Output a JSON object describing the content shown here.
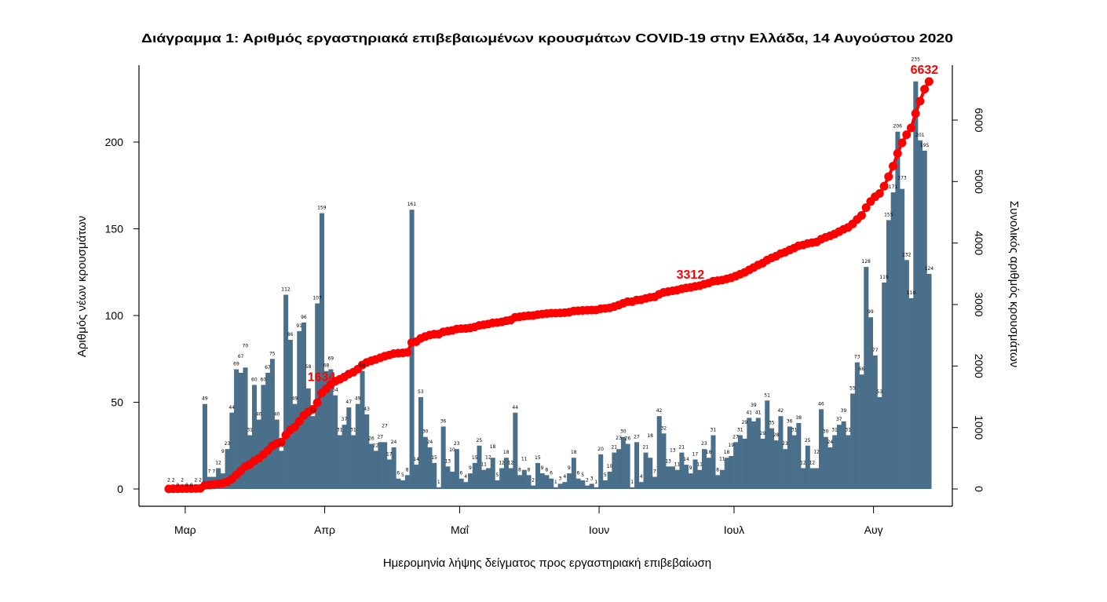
{
  "chart_data": {
    "type": "bar+line",
    "title": "Διάγραμμα 1: Αριθμός εργαστηριακά επιβεβαιωμένων κρουσμάτων COVID-19 στην Ελλάδα, 14 Αυγούστου 2020",
    "xlabel": "Ημερομηνία λήψης δείγματος προς εργαστηριακή επιβεβαίωση",
    "ylabel": "Αριθμός νέων κρουσμάτων",
    "y2label": "Συνολικός αριθμός κρουσμάτων",
    "ylim": [
      0,
      230
    ],
    "y2lim": [
      0,
      6632
    ],
    "yticks": [
      0,
      50,
      100,
      150,
      200
    ],
    "y2ticks": [
      0,
      1000,
      2000,
      3000,
      4000,
      5000,
      6000
    ],
    "xticks": [
      {
        "date": "2020-03-01",
        "label": "Μαρ"
      },
      {
        "date": "2020-04-01",
        "label": "Απρ"
      },
      {
        "date": "2020-05-01",
        "label": "Μαΐ"
      },
      {
        "date": "2020-06-01",
        "label": "Ιουν"
      },
      {
        "date": "2020-07-01",
        "label": "Ιουλ"
      },
      {
        "date": "2020-08-01",
        "label": "Αυγ"
      }
    ],
    "grid": false,
    "colors": {
      "bars": "#4a6f8b",
      "cumulative": "#ff0000"
    },
    "x": [
      "2020-02-26",
      "2020-02-27",
      "2020-02-28",
      "2020-02-29",
      "2020-03-01",
      "2020-03-02",
      "2020-03-03",
      "2020-03-04",
      "2020-03-05",
      "2020-03-06",
      "2020-03-07",
      "2020-03-08",
      "2020-03-09",
      "2020-03-10",
      "2020-03-11",
      "2020-03-12",
      "2020-03-13",
      "2020-03-14",
      "2020-03-15",
      "2020-03-16",
      "2020-03-17",
      "2020-03-18",
      "2020-03-19",
      "2020-03-20",
      "2020-03-21",
      "2020-03-22",
      "2020-03-23",
      "2020-03-24",
      "2020-03-25",
      "2020-03-26",
      "2020-03-27",
      "2020-03-28",
      "2020-03-29",
      "2020-03-30",
      "2020-03-31",
      "2020-04-01",
      "2020-04-02",
      "2020-04-03",
      "2020-04-04",
      "2020-04-05",
      "2020-04-06",
      "2020-04-07",
      "2020-04-08",
      "2020-04-09",
      "2020-04-10",
      "2020-04-11",
      "2020-04-12",
      "2020-04-13",
      "2020-04-14",
      "2020-04-15",
      "2020-04-16",
      "2020-04-17",
      "2020-04-18",
      "2020-04-19",
      "2020-04-20",
      "2020-04-21",
      "2020-04-22",
      "2020-04-23",
      "2020-04-24",
      "2020-04-25",
      "2020-04-26",
      "2020-04-27",
      "2020-04-28",
      "2020-04-29",
      "2020-04-30",
      "2020-05-01",
      "2020-05-02",
      "2020-05-03",
      "2020-05-04",
      "2020-05-05",
      "2020-05-06",
      "2020-05-07",
      "2020-05-08",
      "2020-05-09",
      "2020-05-10",
      "2020-05-11",
      "2020-05-12",
      "2020-05-13",
      "2020-05-14",
      "2020-05-15",
      "2020-05-16",
      "2020-05-17",
      "2020-05-18",
      "2020-05-19",
      "2020-05-20",
      "2020-05-21",
      "2020-05-22",
      "2020-05-23",
      "2020-05-24",
      "2020-05-25",
      "2020-05-26",
      "2020-05-27",
      "2020-05-28",
      "2020-05-29",
      "2020-05-30",
      "2020-05-31",
      "2020-06-01",
      "2020-06-02",
      "2020-06-03",
      "2020-06-04",
      "2020-06-05",
      "2020-06-06",
      "2020-06-07",
      "2020-06-08",
      "2020-06-09",
      "2020-06-10",
      "2020-06-11",
      "2020-06-12",
      "2020-06-13",
      "2020-06-14",
      "2020-06-15",
      "2020-06-16",
      "2020-06-17",
      "2020-06-18",
      "2020-06-19",
      "2020-06-20",
      "2020-06-21",
      "2020-06-22",
      "2020-06-23",
      "2020-06-24",
      "2020-06-25",
      "2020-06-26",
      "2020-06-27",
      "2020-06-28",
      "2020-06-29",
      "2020-06-30",
      "2020-07-01",
      "2020-07-02",
      "2020-07-03",
      "2020-07-04",
      "2020-07-05",
      "2020-07-06",
      "2020-07-07",
      "2020-07-08",
      "2020-07-09",
      "2020-07-10",
      "2020-07-11",
      "2020-07-12",
      "2020-07-13",
      "2020-07-14",
      "2020-07-15",
      "2020-07-16",
      "2020-07-17",
      "2020-07-18",
      "2020-07-19",
      "2020-07-20",
      "2020-07-21",
      "2020-07-22",
      "2020-07-23",
      "2020-07-24",
      "2020-07-25",
      "2020-07-26",
      "2020-07-27",
      "2020-07-28",
      "2020-07-29",
      "2020-07-30",
      "2020-07-31",
      "2020-08-01",
      "2020-08-02",
      "2020-08-03",
      "2020-08-04",
      "2020-08-05",
      "2020-08-06",
      "2020-08-07",
      "2020-08-08",
      "2020-08-09",
      "2020-08-10",
      "2020-08-11",
      "2020-08-12",
      "2020-08-13"
    ],
    "values": [
      2,
      2,
      0,
      2,
      0,
      0,
      2,
      2,
      49,
      7,
      7,
      12,
      9,
      23,
      44,
      69,
      67,
      70,
      31,
      60,
      40,
      60,
      67,
      75,
      40,
      22,
      112,
      86,
      49,
      91,
      96,
      58,
      42,
      107,
      159,
      68,
      69,
      54,
      31,
      37,
      47,
      31,
      49,
      68,
      43,
      26,
      22,
      27,
      27,
      17,
      24,
      6,
      5,
      8,
      161,
      14,
      53,
      30,
      24,
      15,
      1,
      36,
      13,
      10,
      23,
      6,
      4,
      9,
      15,
      25,
      11,
      12,
      18,
      5,
      12,
      18,
      12,
      44,
      8,
      11,
      8,
      2,
      15,
      9,
      8,
      6,
      1,
      3,
      4,
      9,
      18,
      6,
      5,
      2,
      3,
      1,
      20,
      5,
      10,
      21,
      23,
      30,
      26,
      1,
      27,
      4,
      21,
      18,
      7,
      42,
      32,
      13,
      13,
      11,
      21,
      14,
      9,
      17,
      11,
      23,
      18,
      31,
      8,
      11,
      18,
      19,
      27,
      31,
      29,
      41,
      39,
      41,
      29,
      51,
      35,
      28,
      42,
      23,
      36,
      31,
      38,
      12,
      25,
      12,
      12,
      46,
      30,
      24,
      31,
      37,
      39,
      31,
      55,
      73,
      66,
      128,
      99,
      77,
      53,
      119,
      155,
      171,
      206,
      173,
      132,
      110,
      235,
      201,
      195,
      124
    ],
    "cumulative_annotations": [
      {
        "date": "2020-04-01",
        "label": "1634"
      },
      {
        "date": "2020-06-22",
        "label": "3312"
      },
      {
        "date": "2020-08-13",
        "label": "6632"
      }
    ]
  }
}
